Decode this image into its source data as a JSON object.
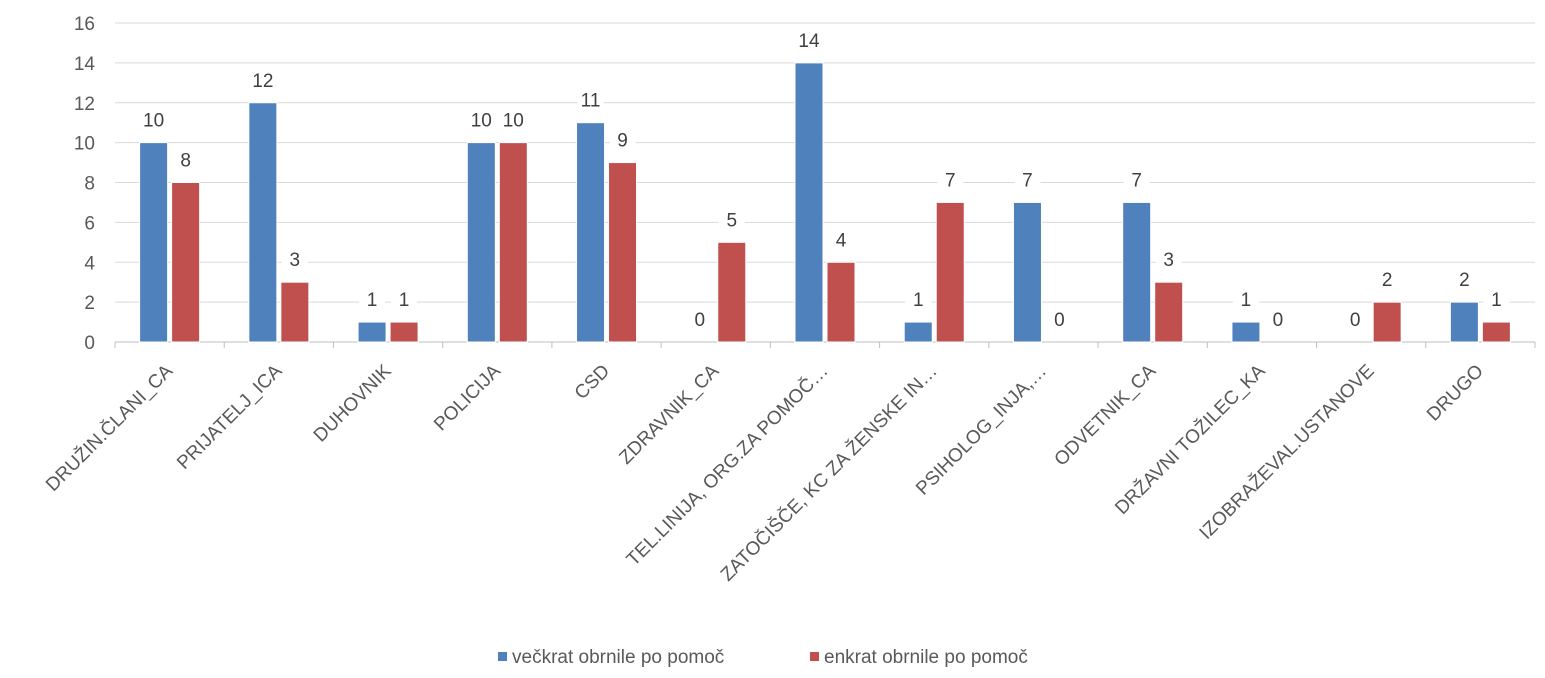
{
  "chart_data": {
    "type": "bar",
    "title": "",
    "xlabel": "",
    "ylabel": "",
    "categories": [
      "DRUŽIN.ČLANI_CA",
      "PRIJATELJ_ICA",
      "DUHOVNIK",
      "POLICIJA",
      "CSD",
      "ZDRAVNIK_CA",
      "TEL.LINIJA, ORG.ZA POMOČ…",
      "ZATOČIŠČE, KC ZA ŽENSKE IN…",
      "PSIHOLOG_INJA,…",
      "ODVETNIK_CA",
      "DRŽAVNI TOŽILEC_KA",
      "IZOBRAŽEVAL.USTANOVE",
      "DRUGO"
    ],
    "series": [
      {
        "name": "večkrat obrnile po pomoč",
        "color": "#4F81BD",
        "values": [
          10,
          12,
          1,
          10,
          11,
          0,
          14,
          1,
          7,
          7,
          1,
          0,
          2
        ]
      },
      {
        "name": "enkrat obrnile po pomoč",
        "color": "#C0504D",
        "values": [
          8,
          3,
          1,
          10,
          9,
          5,
          4,
          7,
          0,
          3,
          0,
          2,
          1
        ]
      }
    ],
    "ylim": [
      0,
      16
    ],
    "yticks": [
      0,
      2,
      4,
      6,
      8,
      10,
      12,
      14,
      16
    ],
    "grid": true,
    "legend_position": "bottom"
  }
}
